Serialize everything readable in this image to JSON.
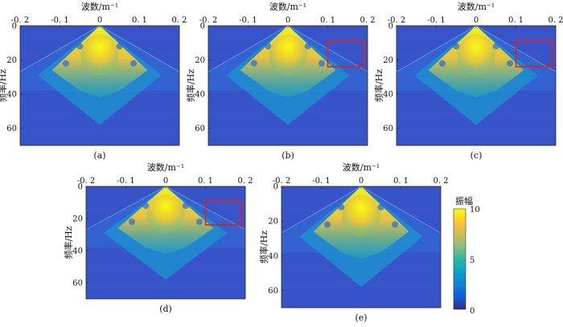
{
  "figure": {
    "captions": [
      "(a)",
      "(b)",
      "(c)",
      "(d)",
      "(e)"
    ]
  },
  "colorbar": {
    "title": "振幅",
    "ticks": [
      "10",
      "5",
      "0"
    ],
    "colors": [
      "#352a87",
      "#0f5cdd",
      "#1481d6",
      "#06a4ca",
      "#2eb7a4",
      "#87bf77",
      "#d1bb59",
      "#fec832",
      "#f9fb0e"
    ]
  },
  "chart_data": [
    {
      "type": "heatmap",
      "panel": "(a)",
      "xlabel": "波数/m⁻¹",
      "ylabel": "频率/Hz",
      "xticks": [
        "-0. 2",
        "-0. 1",
        "0",
        "0. 1",
        "0. 2"
      ],
      "yticks": [
        "0",
        "20",
        "40",
        "60"
      ],
      "xlim": [
        -0.2,
        0.2
      ],
      "ylim": [
        0,
        70
      ],
      "colorbar_range": [
        0,
        10
      ],
      "highlight_box": null
    },
    {
      "type": "heatmap",
      "panel": "(b)",
      "xlabel": "波数/m⁻¹",
      "ylabel": "频率/Hz",
      "xticks": [
        "-0. 2",
        "-0. 1",
        "0",
        "0. 1",
        "0. 2"
      ],
      "yticks": [
        "0",
        "20",
        "40",
        "60"
      ],
      "xlim": [
        -0.2,
        0.2
      ],
      "ylim": [
        0,
        70
      ],
      "colorbar_range": [
        0,
        10
      ],
      "highlight_box": {
        "x": [
          0.1,
          0.19
        ],
        "y": [
          9,
          24
        ]
      }
    },
    {
      "type": "heatmap",
      "panel": "(c)",
      "xlabel": "波数/m⁻¹",
      "ylabel": "频率/Hz",
      "xticks": [
        "-0. 2",
        "-0. 1",
        "0",
        "0. 1",
        "0. 2"
      ],
      "yticks": [
        "0",
        "20",
        "40",
        "60"
      ],
      "xlim": [
        -0.2,
        0.2
      ],
      "ylim": [
        0,
        70
      ],
      "colorbar_range": [
        0,
        10
      ],
      "highlight_box": {
        "x": [
          0.1,
          0.19
        ],
        "y": [
          9,
          24
        ]
      }
    },
    {
      "type": "heatmap",
      "panel": "(d)",
      "xlabel": "波数/m⁻¹",
      "ylabel": "频率/Hz",
      "xticks": [
        "-0. 2",
        "-0. 1",
        "0",
        "0. 1",
        "0. 2"
      ],
      "yticks": [
        "0",
        "20",
        "40",
        "60"
      ],
      "xlim": [
        -0.2,
        0.2
      ],
      "ylim": [
        0,
        70
      ],
      "colorbar_range": [
        0,
        10
      ],
      "highlight_box": {
        "x": [
          0.1,
          0.19
        ],
        "y": [
          9,
          24
        ]
      }
    },
    {
      "type": "heatmap",
      "panel": "(e)",
      "xlabel": "波数/m⁻¹",
      "ylabel": "频率/Hz",
      "xticks": [
        "-0. 2",
        "-0. 1",
        "0",
        "0. 1",
        "0. 2"
      ],
      "yticks": [
        "0",
        "20",
        "40",
        "60"
      ],
      "xlim": [
        -0.2,
        0.2
      ],
      "ylim": [
        0,
        70
      ],
      "colorbar_range": [
        0,
        10
      ],
      "highlight_box": null
    }
  ]
}
